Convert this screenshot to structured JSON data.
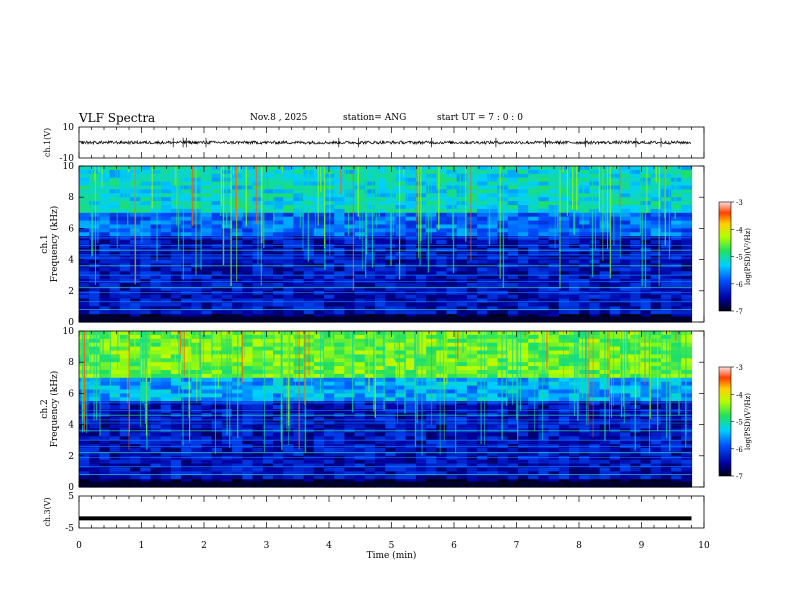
{
  "header": {
    "title": "VLF Spectra",
    "date": "Nov.8  , 2025",
    "station": "station= ANG",
    "start": "start  UT =   7 : 0  : 0"
  },
  "colors": {
    "background": "#ffffff",
    "axis": "#000000",
    "spectrogram_low": "#000010",
    "spectrogram_high": "#ff0000"
  },
  "chart_data": [
    {
      "type": "line",
      "name": "ch1-waveform",
      "ylabel": "ch.1(V)",
      "ylim": [
        -10,
        10
      ],
      "y_ticks": [
        "10",
        "-10"
      ],
      "xlim": [
        0,
        10
      ],
      "x": [
        0,
        1,
        2,
        3,
        4,
        5,
        6,
        7,
        8,
        9,
        9.8
      ],
      "values": [
        0,
        0,
        0,
        0,
        0,
        0,
        0,
        0,
        0,
        0,
        0
      ],
      "note_amplitude": 1
    },
    {
      "type": "heatmap",
      "name": "ch1-spectrogram",
      "ylabel": "ch.1",
      "ylabel2": "Frequency  (kHz)",
      "xlim": [
        0,
        10
      ],
      "ylim": [
        0,
        10
      ],
      "data_x_max": 9.8,
      "y_ticks": [
        "0",
        "2",
        "4",
        "6",
        "8",
        "10"
      ],
      "colorbar": {
        "label": "log(PSD)(V²/Hz)",
        "range": [
          -7,
          -3
        ],
        "ticks": [
          "-3",
          "-4",
          "-5",
          "-6",
          "-7"
        ]
      }
    },
    {
      "type": "heatmap",
      "name": "ch2-spectrogram",
      "ylabel": "ch.2",
      "ylabel2": "Frequency  (kHz)",
      "xlim": [
        0,
        10
      ],
      "ylim": [
        0,
        10
      ],
      "data_x_max": 9.8,
      "y_ticks": [
        "0",
        "2",
        "4",
        "6",
        "8",
        "10"
      ],
      "colorbar": {
        "label": "log(PSD)(V²/Hz)",
        "range": [
          -7,
          -3
        ],
        "ticks": [
          "-3",
          "-4",
          "-5",
          "-6",
          "-7"
        ]
      }
    },
    {
      "type": "line",
      "name": "ch3-waveform",
      "ylabel": "ch.3(V)",
      "ylim": [
        -5,
        5
      ],
      "y_ticks": [
        "5",
        "-5"
      ],
      "xlim": [
        0,
        10
      ],
      "x": [
        0,
        9.8
      ],
      "values": [
        -2,
        -2
      ]
    }
  ],
  "x_axis": {
    "label": "Time  (min)",
    "ticks": [
      "0",
      "1",
      "2",
      "3",
      "4",
      "5",
      "6",
      "7",
      "8",
      "9",
      "10"
    ]
  }
}
